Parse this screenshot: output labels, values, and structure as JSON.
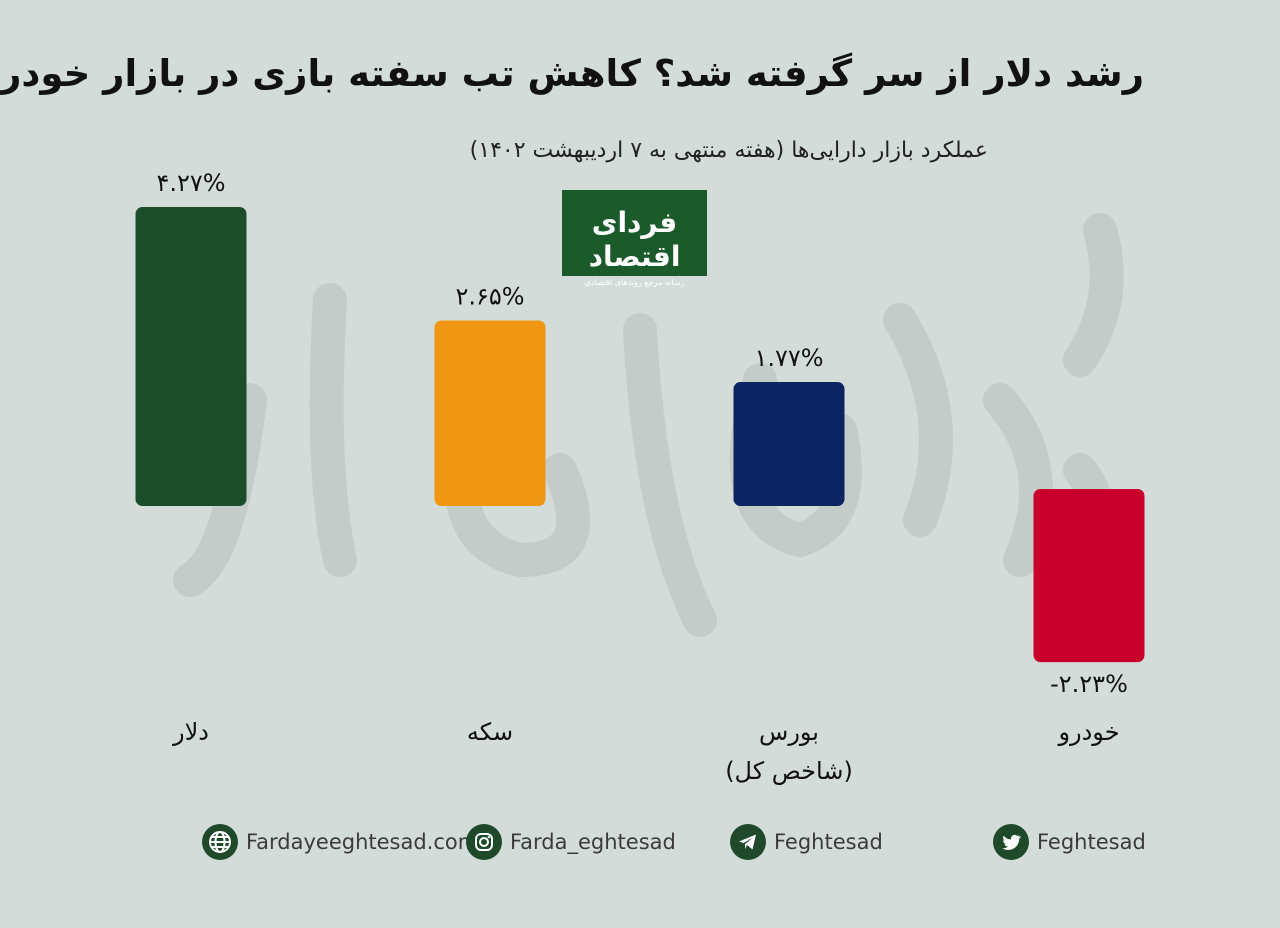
{
  "header": {
    "title": "رشد دلار از سر گرفته شد؟ کاهش تب سفته بازی در بازار خودرو",
    "subtitle": "عملکرد بازار دارایی‌ها (هفته منتهی به ۷ اردیبهشت ۱۴۰۲)"
  },
  "logo": {
    "name": "فردای اقتصاد",
    "tagline": "رسانه مرجع روندهای اقتصادی",
    "bg_color": "#1b5a2b"
  },
  "chart_data": {
    "type": "bar",
    "categories": [
      "دلار",
      "سکه",
      "بورس\n(شاخص کل)",
      "خودرو"
    ],
    "category_labels": [
      "دلار",
      "سکه",
      "بورس",
      "خودرو"
    ],
    "category_sublabels": [
      "",
      "",
      "(شاخص کل)",
      ""
    ],
    "values": [
      4.27,
      2.65,
      1.77,
      -2.23
    ],
    "value_labels": [
      "۴.۲۷%",
      "۲.۶۵%",
      "۱.۷۷%",
      "-۲.۲۳%"
    ],
    "colors": [
      "#1b4d2b",
      "#ef9612",
      "#0c2461",
      "#c9002b"
    ],
    "ylim": [
      -2.23,
      4.27
    ],
    "grid": false,
    "legend": "none"
  },
  "footer": [
    {
      "icon": "globe-icon",
      "text": "Fardayeeghtesad.com"
    },
    {
      "icon": "instagram-icon",
      "text": "Farda_eghtesad"
    },
    {
      "icon": "telegram-icon",
      "text": "Feghtesad"
    },
    {
      "icon": "twitter-icon",
      "text": "Feghtesad"
    }
  ],
  "colors": {
    "background": "#d4dcd9",
    "footer_icon": "#1e4a2a",
    "footer_text": "#3b3b3b"
  }
}
